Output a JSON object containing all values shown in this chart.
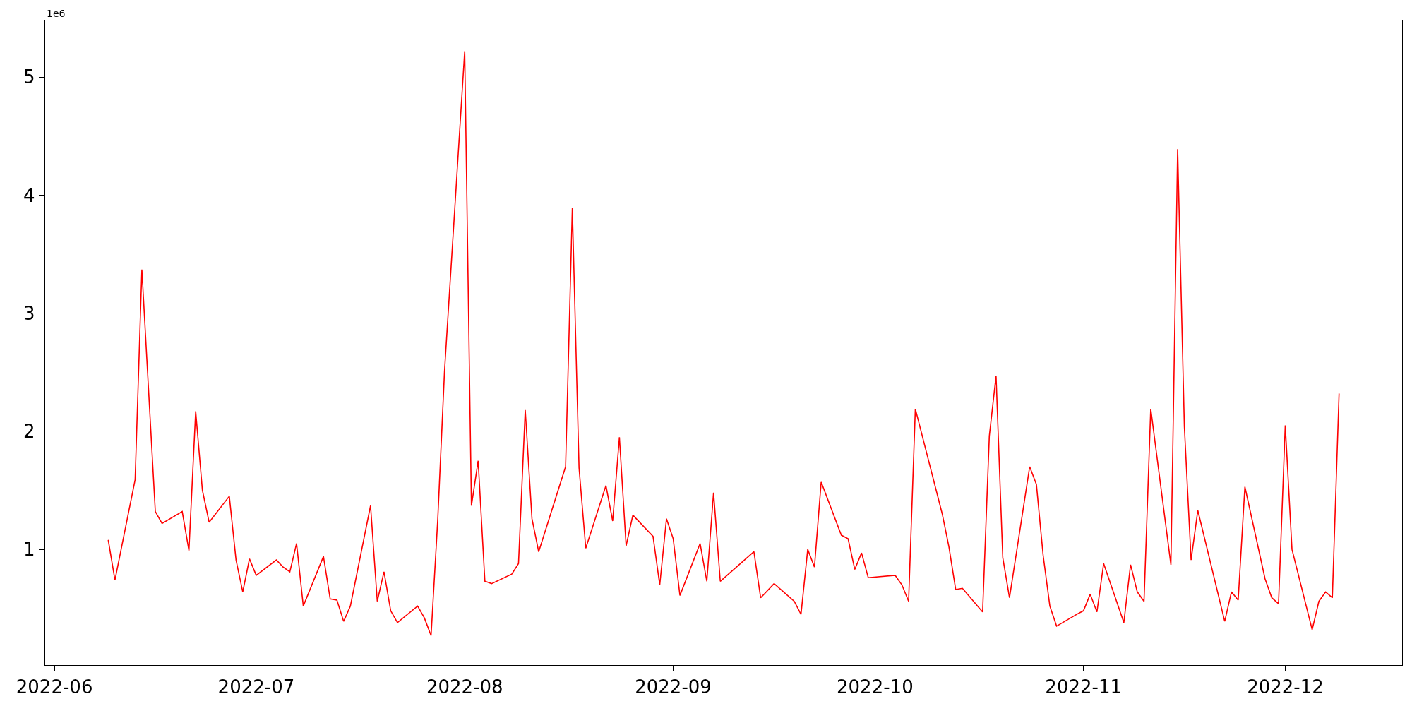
{
  "chart_data": {
    "type": "line",
    "x": [
      "2022-06-09",
      "2022-06-10",
      "2022-06-13",
      "2022-06-14",
      "2022-06-16",
      "2022-06-17",
      "2022-06-20",
      "2022-06-21",
      "2022-06-22",
      "2022-06-23",
      "2022-06-24",
      "2022-06-27",
      "2022-06-28",
      "2022-06-29",
      "2022-06-30",
      "2022-07-01",
      "2022-07-04",
      "2022-07-05",
      "2022-07-06",
      "2022-07-07",
      "2022-07-08",
      "2022-07-11",
      "2022-07-12",
      "2022-07-13",
      "2022-07-14",
      "2022-07-15",
      "2022-07-18",
      "2022-07-19",
      "2022-07-20",
      "2022-07-21",
      "2022-07-22",
      "2022-07-25",
      "2022-07-26",
      "2022-07-27",
      "2022-07-28",
      "2022-07-29",
      "2022-08-01",
      "2022-08-02",
      "2022-08-03",
      "2022-08-04",
      "2022-08-05",
      "2022-08-08",
      "2022-08-09",
      "2022-08-10",
      "2022-08-11",
      "2022-08-12",
      "2022-08-16",
      "2022-08-17",
      "2022-08-18",
      "2022-08-19",
      "2022-08-22",
      "2022-08-23",
      "2022-08-24",
      "2022-08-25",
      "2022-08-26",
      "2022-08-29",
      "2022-08-30",
      "2022-08-31",
      "2022-09-01",
      "2022-09-02",
      "2022-09-05",
      "2022-09-06",
      "2022-09-07",
      "2022-09-08",
      "2022-09-13",
      "2022-09-14",
      "2022-09-16",
      "2022-09-19",
      "2022-09-20",
      "2022-09-21",
      "2022-09-22",
      "2022-09-23",
      "2022-09-26",
      "2022-09-27",
      "2022-09-28",
      "2022-09-29",
      "2022-09-30",
      "2022-10-04",
      "2022-10-05",
      "2022-10-06",
      "2022-10-07",
      "2022-10-11",
      "2022-10-12",
      "2022-10-13",
      "2022-10-14",
      "2022-10-17",
      "2022-10-18",
      "2022-10-19",
      "2022-10-20",
      "2022-10-21",
      "2022-10-24",
      "2022-10-25",
      "2022-10-26",
      "2022-10-27",
      "2022-10-28",
      "2022-10-31",
      "2022-11-01",
      "2022-11-02",
      "2022-11-03",
      "2022-11-04",
      "2022-11-07",
      "2022-11-08",
      "2022-11-09",
      "2022-11-10",
      "2022-11-11",
      "2022-11-14",
      "2022-11-15",
      "2022-11-16",
      "2022-11-17",
      "2022-11-18",
      "2022-11-22",
      "2022-11-23",
      "2022-11-24",
      "2022-11-25",
      "2022-11-28",
      "2022-11-29",
      "2022-11-30",
      "2022-12-01",
      "2022-12-02",
      "2022-12-05",
      "2022-12-06",
      "2022-12-07",
      "2022-12-08",
      "2022-12-09"
    ],
    "series": [
      {
        "color": "#ff0000",
        "values": [
          1.08,
          0.74,
          1.59,
          3.37,
          1.32,
          1.22,
          1.32,
          0.99,
          2.17,
          1.5,
          1.23,
          1.45,
          0.91,
          0.64,
          0.92,
          0.78,
          0.91,
          0.85,
          0.81,
          1.05,
          0.52,
          0.94,
          0.58,
          0.57,
          0.39,
          0.52,
          1.37,
          0.56,
          0.81,
          0.48,
          0.38,
          0.52,
          0.42,
          0.27,
          1.26,
          2.51,
          5.22,
          1.37,
          1.75,
          0.73,
          0.71,
          0.79,
          0.88,
          2.18,
          1.26,
          0.98,
          1.7,
          3.89,
          1.69,
          1.01,
          1.54,
          1.24,
          1.95,
          1.03,
          1.29,
          1.11,
          0.7,
          1.26,
          1.09,
          0.61,
          1.05,
          0.73,
          1.48,
          0.73,
          0.98,
          0.59,
          0.71,
          0.56,
          0.45,
          1.0,
          0.85,
          1.57,
          1.12,
          1.09,
          0.83,
          0.97,
          0.76,
          0.78,
          0.7,
          0.56,
          2.19,
          1.3,
          1.02,
          0.66,
          0.67,
          0.47,
          1.96,
          2.47,
          0.93,
          0.59,
          1.7,
          1.55,
          0.95,
          0.52,
          0.35,
          0.45,
          0.48,
          0.62,
          0.47,
          0.88,
          0.38,
          0.87,
          0.64,
          0.56,
          2.19,
          0.87,
          4.39,
          2.04,
          0.91,
          1.33,
          0.39,
          0.64,
          0.57,
          1.53,
          0.75,
          0.59,
          0.54,
          2.05,
          1.0,
          0.32,
          0.56,
          0.64,
          0.59,
          2.32
        ]
      }
    ],
    "xlim": [
      "2022-05-30T15:00",
      "2022-12-18T09:00"
    ],
    "xticks": [
      {
        "value": "2022-06-01",
        "label": "2022-06"
      },
      {
        "value": "2022-07-01",
        "label": "2022-07"
      },
      {
        "value": "2022-08-01",
        "label": "2022-08"
      },
      {
        "value": "2022-09-01",
        "label": "2022-09"
      },
      {
        "value": "2022-10-01",
        "label": "2022-10"
      },
      {
        "value": "2022-11-01",
        "label": "2022-11"
      },
      {
        "value": "2022-12-01",
        "label": "2022-12"
      }
    ],
    "ylim": [
      0.02,
      5.48
    ],
    "yticks": [
      1,
      2,
      3,
      4,
      5
    ],
    "annotations": [
      "1e6"
    ],
    "marker": "none",
    "line_style": "solid"
  }
}
